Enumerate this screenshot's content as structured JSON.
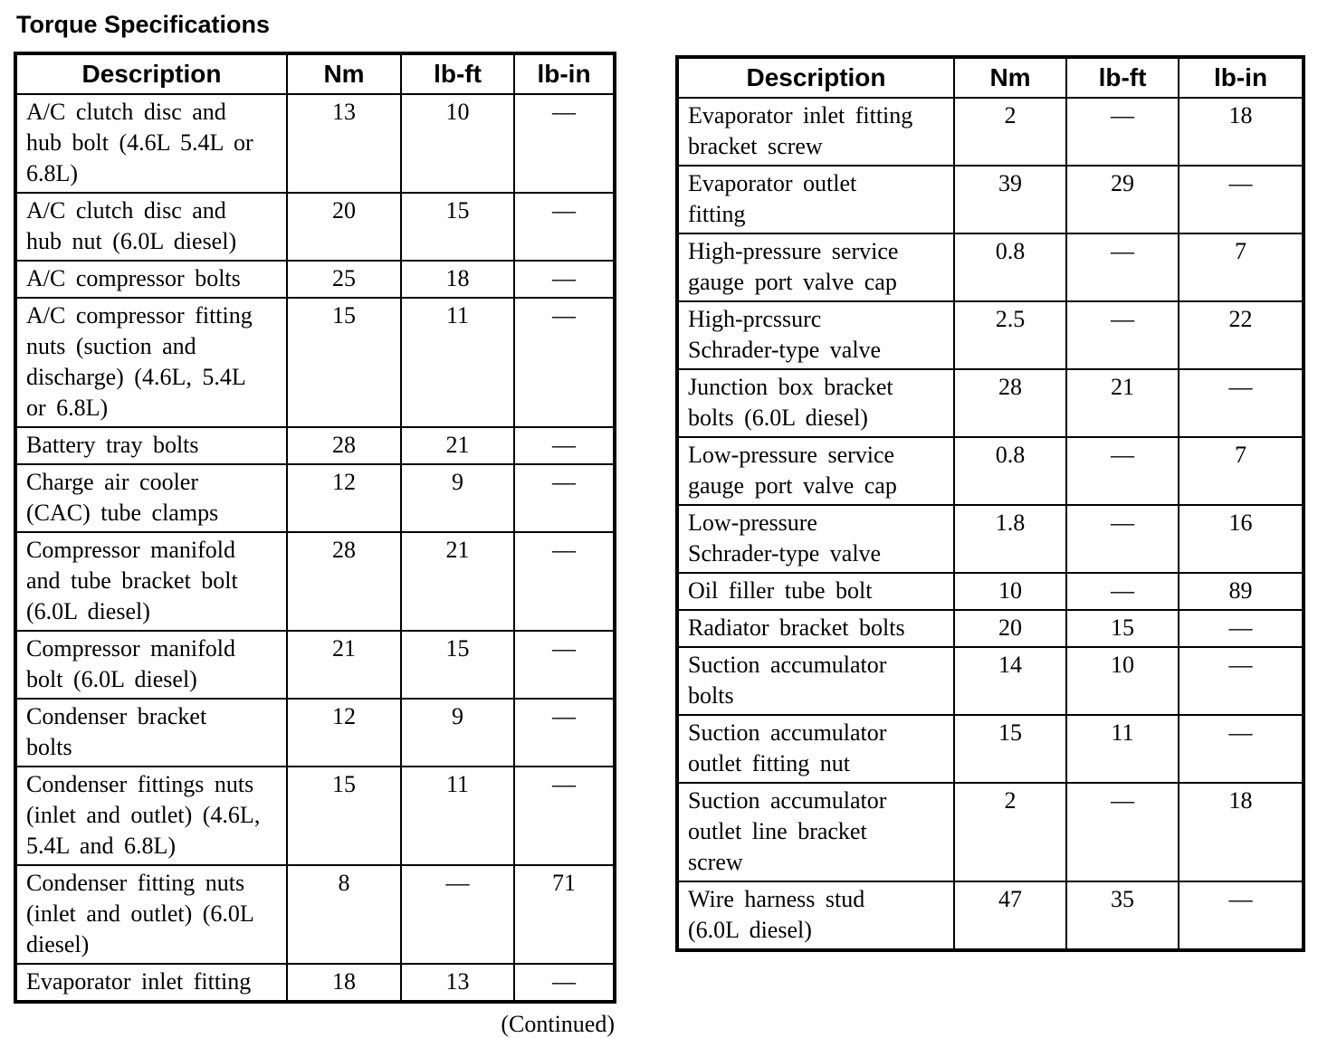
{
  "page_title": "Torque Specifications",
  "continued_note": "(Continued)",
  "colors": {
    "text": "#000000",
    "background": "#ffffff",
    "border": "#000000"
  },
  "tables": [
    {
      "name": "left",
      "headers": [
        "Description",
        "Nm",
        "lb-ft",
        "lb-in"
      ],
      "rows": [
        [
          "A/C clutch disc and\nhub bolt (4.6L 5.4L or\n6.8L)",
          "13",
          "10",
          "—"
        ],
        [
          "A/C clutch disc and\nhub nut (6.0L diesel)",
          "20",
          "15",
          "—"
        ],
        [
          "A/C compressor bolts",
          "25",
          "18",
          "—"
        ],
        [
          "A/C compressor fitting\nnuts (suction and\ndischarge) (4.6L, 5.4L\nor 6.8L)",
          "15",
          "11",
          "—"
        ],
        [
          "Battery tray bolts",
          "28",
          "21",
          "—"
        ],
        [
          "Charge air cooler\n(CAC) tube clamps",
          "12",
          "9",
          "—"
        ],
        [
          "Compressor manifold\nand tube bracket bolt\n(6.0L diesel)",
          "28",
          "21",
          "—"
        ],
        [
          "Compressor manifold\nbolt (6.0L diesel)",
          "21",
          "15",
          "—"
        ],
        [
          "Condenser bracket\nbolts",
          "12",
          "9",
          "—"
        ],
        [
          "Condenser fittings nuts\n(inlet and outlet) (4.6L,\n5.4L and 6.8L)",
          "15",
          "11",
          "—"
        ],
        [
          "Condenser fitting nuts\n(inlet and outlet) (6.0L\ndiesel)",
          "8",
          "—",
          "71"
        ],
        [
          "Evaporator inlet fitting",
          "18",
          "13",
          "—"
        ]
      ]
    },
    {
      "name": "right",
      "headers": [
        "Description",
        "Nm",
        "lb-ft",
        "lb-in"
      ],
      "rows": [
        [
          "Evaporator inlet fitting\nbracket screw",
          "2",
          "—",
          "18"
        ],
        [
          "Evaporator outlet\nfitting",
          "39",
          "29",
          "—"
        ],
        [
          "High-pressure service\ngauge port valve cap",
          "0.8",
          "—",
          "7"
        ],
        [
          "High-prcssurc\nSchrader-type valve",
          "2.5",
          "—",
          "22"
        ],
        [
          "Junction box bracket\nbolts (6.0L diesel)",
          "28",
          "21",
          "—"
        ],
        [
          "Low-pressure service\ngauge port valve cap",
          "0.8",
          "—",
          "7"
        ],
        [
          "Low-pressure\nSchrader-type valve",
          "1.8",
          "—",
          "16"
        ],
        [
          "Oil filler tube bolt",
          "10",
          "—",
          "89"
        ],
        [
          "Radiator bracket bolts",
          "20",
          "15",
          "—"
        ],
        [
          "Suction accumulator\nbolts",
          "14",
          "10",
          "—"
        ],
        [
          "Suction accumulator\noutlet fitting nut",
          "15",
          "11",
          "—"
        ],
        [
          "Suction accumulator\noutlet line bracket\nscrew",
          "2",
          "—",
          "18"
        ],
        [
          "Wire harness stud\n(6.0L diesel)",
          "47",
          "35",
          "—"
        ]
      ]
    }
  ]
}
